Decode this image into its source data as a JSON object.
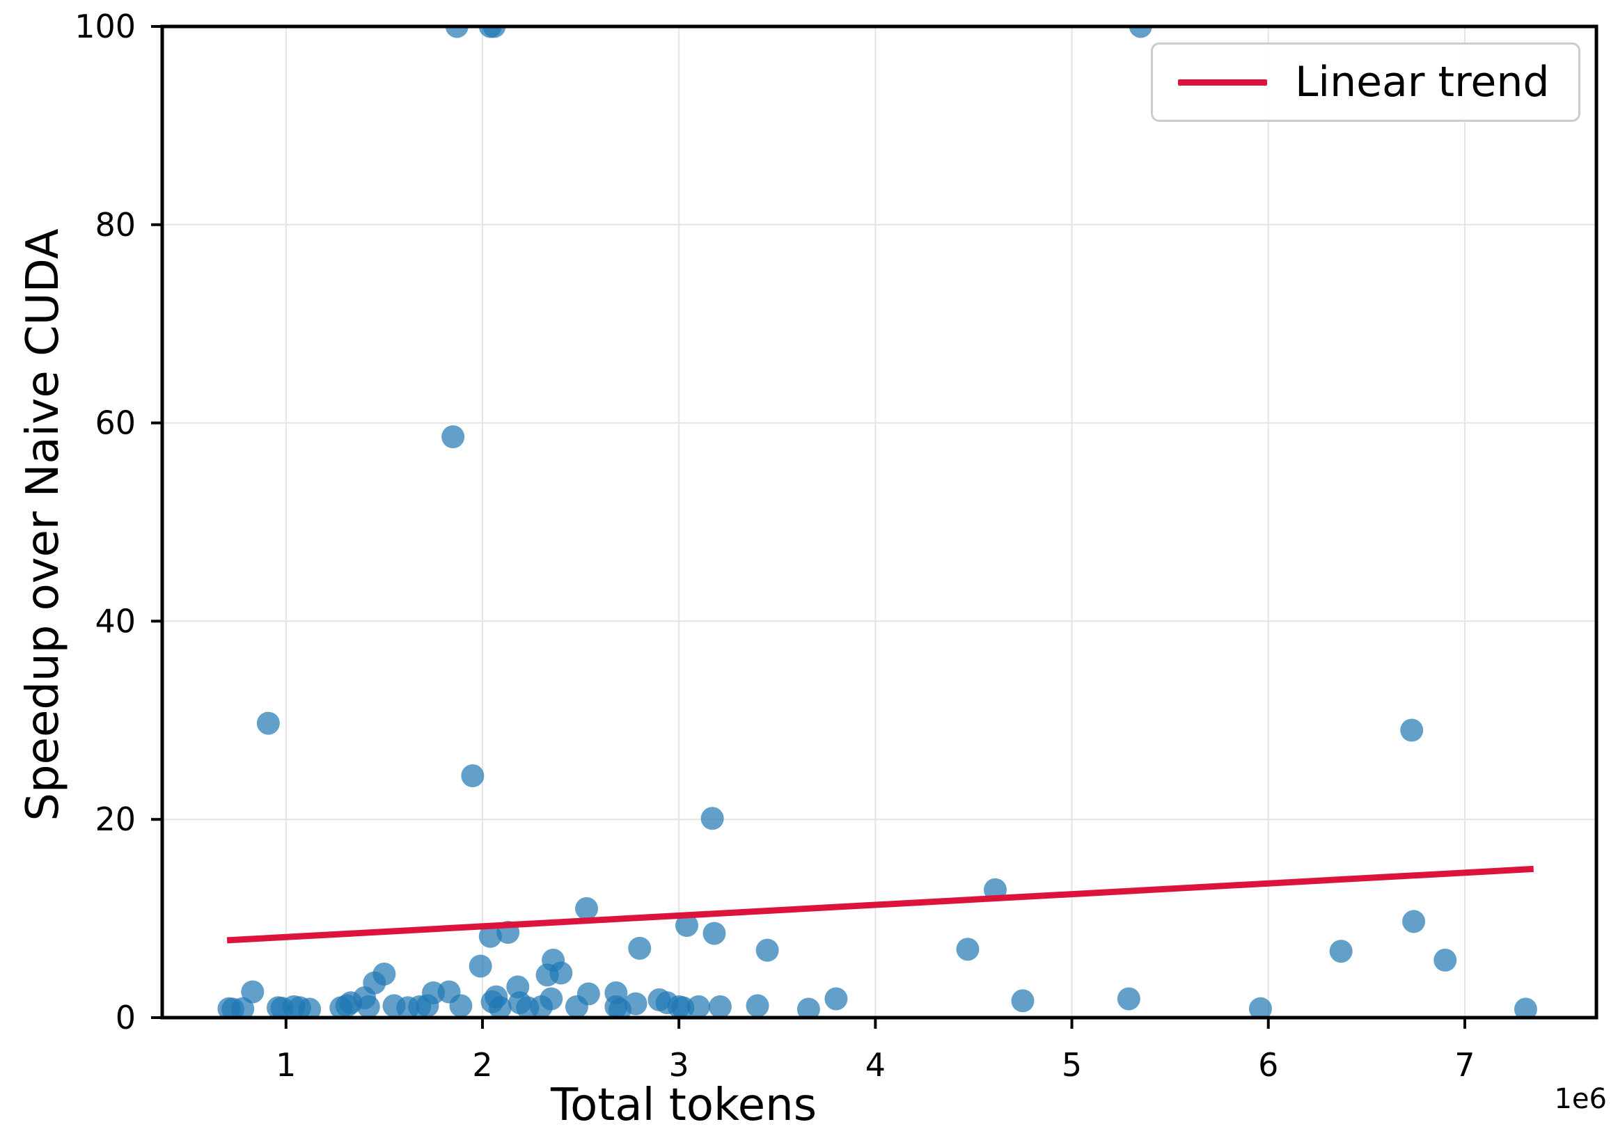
{
  "chart_data": {
    "type": "scatter",
    "title": "",
    "xlabel": "Total tokens",
    "ylabel": "Speedup over Naive CUDA",
    "x_offset_label": "1e6",
    "xlim": [
      0.37,
      7.67
    ],
    "ylim": [
      0,
      100
    ],
    "xticks": [
      1,
      2,
      3,
      4,
      5,
      6,
      7
    ],
    "yticks": [
      0,
      20,
      40,
      60,
      80,
      100
    ],
    "grid": true,
    "grid_color": "#e4e4e4",
    "background": "#ffffff",
    "spine_color": "#000000",
    "legend": {
      "position": "upper right",
      "entries": [
        {
          "label": "Linear trend",
          "color": "#dc143c"
        }
      ]
    },
    "series": [
      {
        "name": "speedup-scatter",
        "type": "scatter",
        "color": "#1f77b4",
        "opacity": 0.7,
        "marker_radius": 16.5,
        "points": [
          [
            0.71,
            0.9
          ],
          [
            0.73,
            0.85
          ],
          [
            0.78,
            0.9
          ],
          [
            0.83,
            2.6
          ],
          [
            0.91,
            29.7
          ],
          [
            0.96,
            1.0
          ],
          [
            0.98,
            0.95
          ],
          [
            1.04,
            1.1
          ],
          [
            1.07,
            1.0
          ],
          [
            1.12,
            0.85
          ],
          [
            1.28,
            1.0
          ],
          [
            1.31,
            1.2
          ],
          [
            1.33,
            1.5
          ],
          [
            1.4,
            2.0
          ],
          [
            1.42,
            1.1
          ],
          [
            1.45,
            3.5
          ],
          [
            1.5,
            4.4
          ],
          [
            1.55,
            1.2
          ],
          [
            1.62,
            1.0
          ],
          [
            1.68,
            1.1
          ],
          [
            1.72,
            1.2
          ],
          [
            1.75,
            2.5
          ],
          [
            1.83,
            2.6
          ],
          [
            1.85,
            58.6
          ],
          [
            1.87,
            100
          ],
          [
            1.89,
            1.2
          ],
          [
            1.95,
            24.4
          ],
          [
            1.99,
            5.2
          ],
          [
            2.04,
            8.2
          ],
          [
            2.04,
            100
          ],
          [
            2.06,
            100
          ],
          [
            2.13,
            8.6
          ],
          [
            2.05,
            1.6
          ],
          [
            2.07,
            2.1
          ],
          [
            2.09,
            1.0
          ],
          [
            2.18,
            3.1
          ],
          [
            2.19,
            1.5
          ],
          [
            2.23,
            1.0
          ],
          [
            2.3,
            1.1
          ],
          [
            2.35,
            1.9
          ],
          [
            2.33,
            4.3
          ],
          [
            2.36,
            5.8
          ],
          [
            2.4,
            4.5
          ],
          [
            2.48,
            1.1
          ],
          [
            2.53,
            11.0
          ],
          [
            2.54,
            2.4
          ],
          [
            2.68,
            2.5
          ],
          [
            2.68,
            1.1
          ],
          [
            2.7,
            0.8
          ],
          [
            2.78,
            1.4
          ],
          [
            2.8,
            7.0
          ],
          [
            2.9,
            1.8
          ],
          [
            2.94,
            1.5
          ],
          [
            3.0,
            1.1
          ],
          [
            3.02,
            1.0
          ],
          [
            3.04,
            9.3
          ],
          [
            3.1,
            1.1
          ],
          [
            3.17,
            20.1
          ],
          [
            3.18,
            8.5
          ],
          [
            3.21,
            1.1
          ],
          [
            3.4,
            1.2
          ],
          [
            3.45,
            6.8
          ],
          [
            3.66,
            0.85
          ],
          [
            3.8,
            1.9
          ],
          [
            4.47,
            6.9
          ],
          [
            4.61,
            12.9
          ],
          [
            4.75,
            1.7
          ],
          [
            5.29,
            1.9
          ],
          [
            5.35,
            100
          ],
          [
            5.96,
            0.9
          ],
          [
            6.37,
            6.7
          ],
          [
            6.73,
            29.0
          ],
          [
            6.74,
            9.7
          ],
          [
            6.9,
            5.8
          ],
          [
            7.31,
            0.85
          ]
        ]
      },
      {
        "name": "Linear trend",
        "type": "line",
        "color": "#dc143c",
        "line_width": 9,
        "points": [
          [
            0.7,
            7.8
          ],
          [
            7.35,
            15.0
          ]
        ]
      }
    ]
  }
}
